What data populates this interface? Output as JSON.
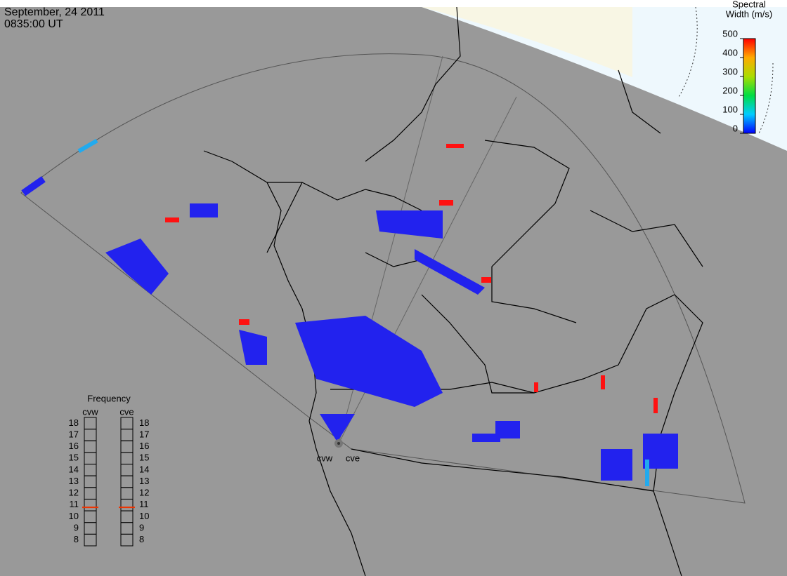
{
  "header": {
    "date": "September, 24 2011",
    "time": "0835:00 UT"
  },
  "colorbar": {
    "title": [
      "Spectral",
      "Width (m/s)"
    ],
    "lim": [
      0,
      500
    ],
    "ticks": [
      0,
      100,
      200,
      300,
      400,
      500
    ]
  },
  "frequency": {
    "title": "Frequency",
    "lim": [
      7.5,
      18.5
    ],
    "ticks": [
      8,
      9,
      10,
      11,
      12,
      13,
      14,
      15,
      16,
      17,
      18
    ],
    "radars": [
      {
        "name": "cvw",
        "value": 10.8
      },
      {
        "name": "cve",
        "value": 10.8
      }
    ]
  },
  "radar_sites": [
    "cvw",
    "cve"
  ]
}
